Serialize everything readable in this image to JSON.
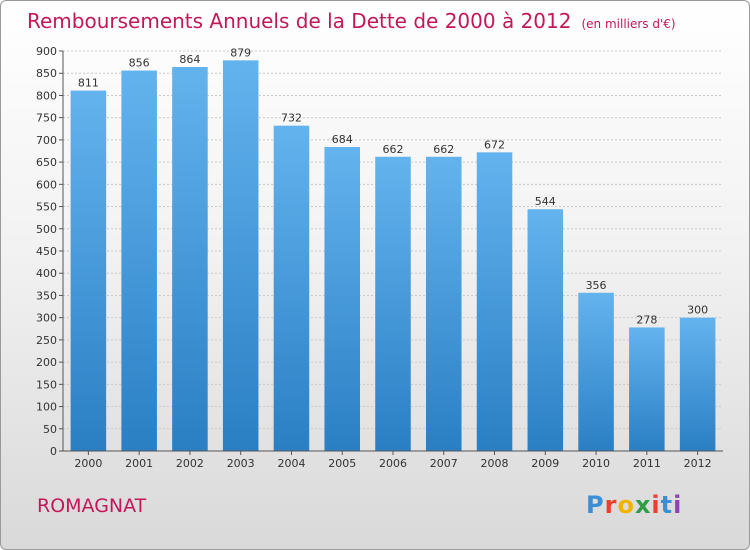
{
  "title": "Remboursements Annuels de la Dette de 2000 à 2012",
  "unit": "(en milliers d'€)",
  "commune": "ROMAGNAT",
  "logo": {
    "text": "Proxiti",
    "colors": [
      "#3b8fd6",
      "#e8412c",
      "#f0b400",
      "#2f9e44",
      "#e8412c",
      "#3b8fd6",
      "#8e44ad"
    ]
  },
  "colors": {
    "bar_top": "#63b3ee",
    "bar_bottom": "#2a7fc4",
    "title": "#c2185b"
  },
  "chart_data": {
    "type": "bar",
    "title": "Remboursements Annuels de la Dette de 2000 à 2012",
    "xlabel": "",
    "ylabel": "",
    "categories": [
      "2000",
      "2001",
      "2002",
      "2003",
      "2004",
      "2005",
      "2006",
      "2007",
      "2008",
      "2009",
      "2010",
      "2011",
      "2012"
    ],
    "values": [
      811,
      856,
      864,
      879,
      732,
      684,
      662,
      662,
      672,
      544,
      356,
      278,
      300
    ],
    "ylim": [
      0,
      900
    ],
    "yticks": [
      0,
      50,
      100,
      150,
      200,
      250,
      300,
      350,
      400,
      450,
      500,
      550,
      600,
      650,
      700,
      750,
      800,
      850,
      900
    ],
    "grid": true,
    "legend": "none"
  }
}
